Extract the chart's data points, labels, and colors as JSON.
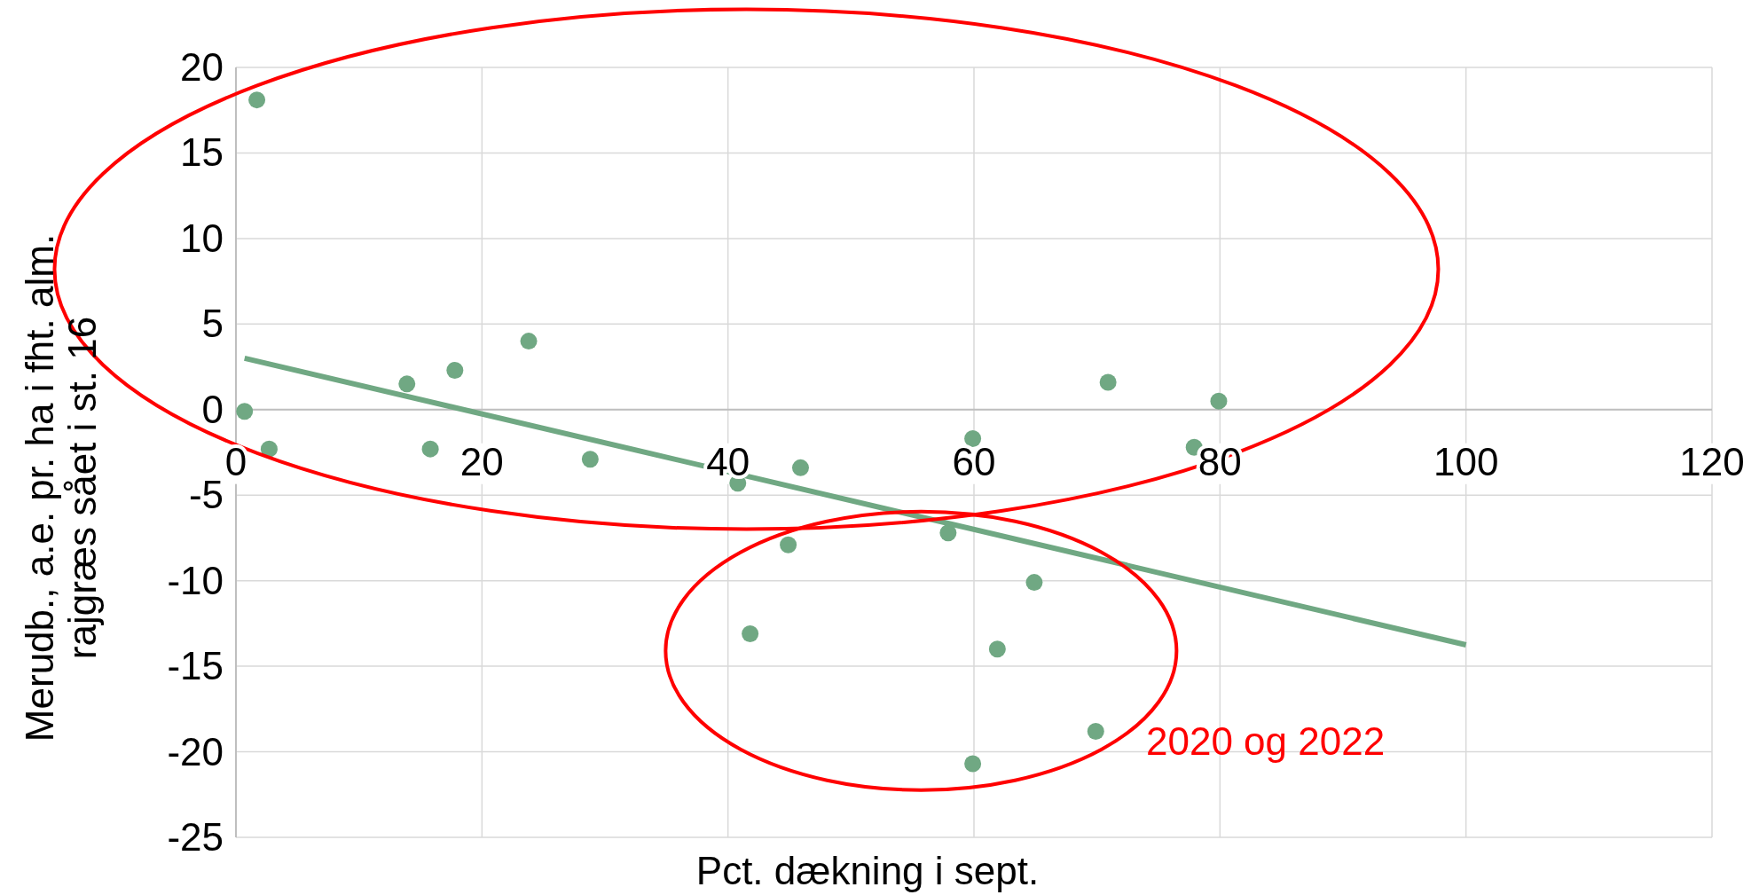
{
  "chart_data": {
    "type": "scatter",
    "xlabel": "Pct. dækning i sept.",
    "ylabel": "Merudb., a.e. pr. ha i fht. alm.\nrajgræs sået i st. 16",
    "xlim": [
      0,
      120
    ],
    "xticks": [
      0,
      20,
      40,
      60,
      80,
      100,
      120
    ],
    "ylim": [
      -25,
      20
    ],
    "yticks": [
      -25,
      -20,
      -15,
      -10,
      -5,
      0,
      5,
      10,
      15,
      20
    ],
    "grid": true,
    "series": [
      {
        "marker": "circle",
        "color": "#70a883",
        "x": [
          1.7,
          0.7,
          2.7,
          13.9,
          15.8,
          17.8,
          23.8,
          28.8,
          40.8,
          45.9,
          44.9,
          41.8,
          57.9,
          59.9,
          59.9,
          61.9,
          64.9,
          69.9,
          70.9,
          77.9,
          79.9
        ],
        "values": [
          18.1,
          -0.1,
          -2.3,
          1.5,
          -2.3,
          2.3,
          4.0,
          -2.9,
          -4.3,
          -3.4,
          -7.9,
          -13.1,
          -7.2,
          -1.7,
          -20.7,
          -14.0,
          -10.1,
          -18.8,
          1.6,
          -2.2,
          0.5
        ]
      },
      {
        "type": "line",
        "color": "#70a883",
        "x": [
          0.7,
          100
        ],
        "values": [
          3.0,
          -13.75
        ]
      }
    ],
    "annotations": [
      "2020 og 2022"
    ]
  }
}
